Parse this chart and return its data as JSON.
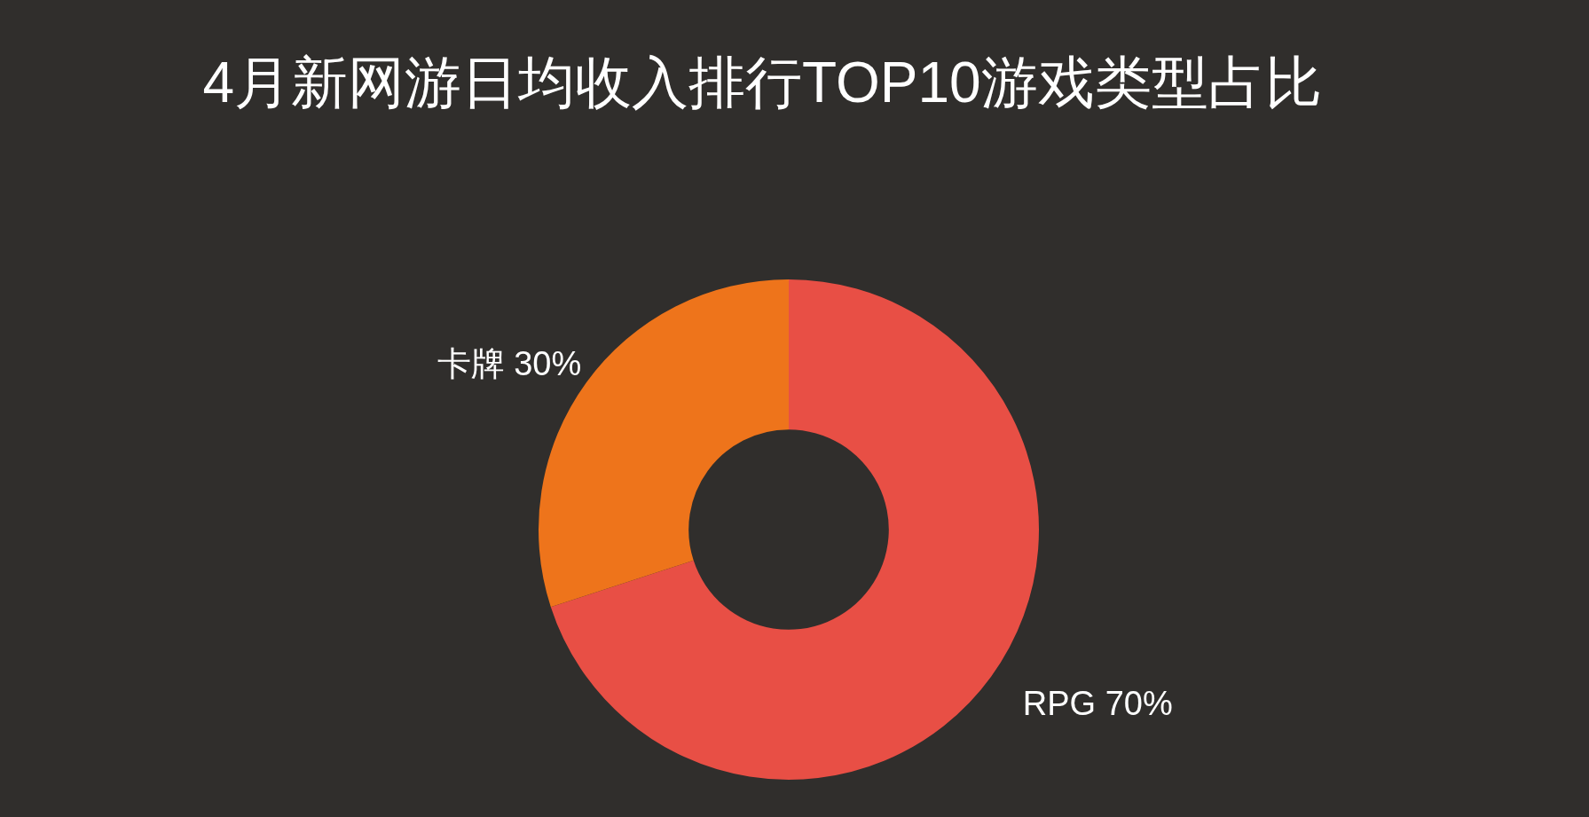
{
  "chart_data": {
    "type": "donut",
    "title": "4月新网游日均收入排行TOP10游戏类型占比",
    "categories": [
      "RPG",
      "卡牌"
    ],
    "values": [
      70,
      30
    ],
    "colors": [
      "#e84f45",
      "#ee741b"
    ],
    "value_labels": [
      "70%",
      "30%"
    ],
    "legend": false
  }
}
